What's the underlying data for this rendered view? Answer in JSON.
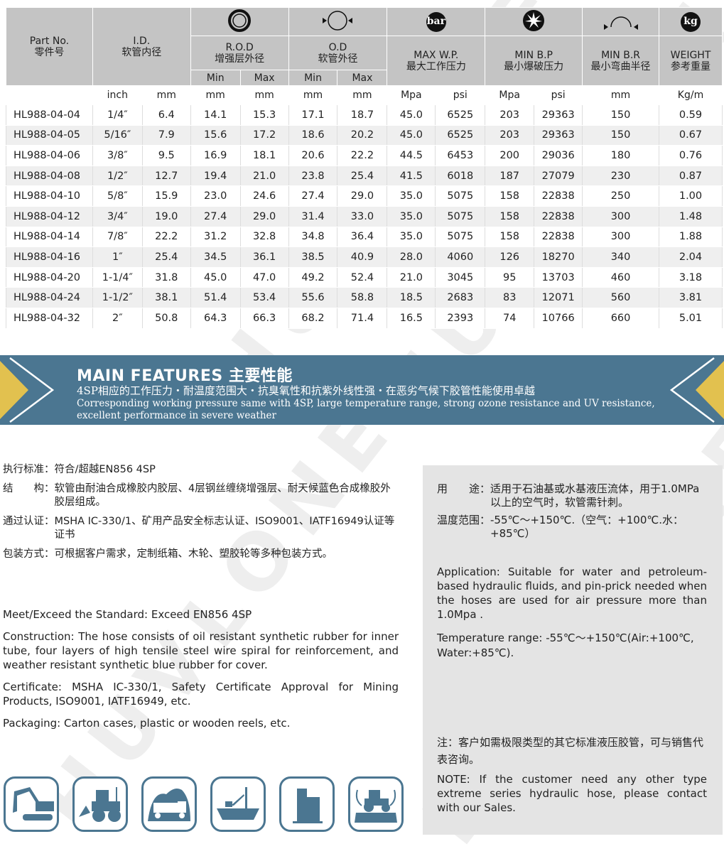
{
  "watermark": "HUVLONE",
  "table": {
    "headers": {
      "part_no": "Part No.",
      "part_no_cn": "零件号",
      "id": "I.D.",
      "id_cn": "软管内径",
      "rod": "R.O.D",
      "rod_cn": "增强层外径",
      "od": "O.D",
      "od_cn": "软管外径",
      "wp": "MAX W.P.",
      "wp_cn": "最大工作压力",
      "bp": "MIN B.P",
      "bp_cn": "最小爆破压力",
      "br": "MIN B.R",
      "br_cn": "最小弯曲半径",
      "weight": "WEIGHT",
      "weight_cn": "参考重量",
      "min": "Min",
      "max": "Max",
      "bar_icon": "bar",
      "kg_icon": "kg"
    },
    "units": [
      "",
      "inch",
      "mm",
      "mm",
      "mm",
      "mm",
      "mm",
      "Mpa",
      "psi",
      "Mpa",
      "psi",
      "mm",
      "Kg/m"
    ],
    "rows": [
      [
        "HL988-04-04",
        "1/4″",
        "6.4",
        "14.1",
        "15.3",
        "17.1",
        "18.7",
        "45.0",
        "6525",
        "203",
        "29363",
        "150",
        "0.59"
      ],
      [
        "HL988-04-05",
        "5/16″",
        "7.9",
        "15.6",
        "17.2",
        "18.6",
        "20.2",
        "45.0",
        "6525",
        "203",
        "29363",
        "150",
        "0.67"
      ],
      [
        "HL988-04-06",
        "3/8″",
        "9.5",
        "16.9",
        "18.1",
        "20.6",
        "22.2",
        "44.5",
        "6453",
        "200",
        "29036",
        "180",
        "0.76"
      ],
      [
        "HL988-04-08",
        "1/2″",
        "12.7",
        "19.4",
        "21.0",
        "23.8",
        "25.4",
        "41.5",
        "6018",
        "187",
        "27079",
        "230",
        "0.87"
      ],
      [
        "HL988-04-10",
        "5/8″",
        "15.9",
        "23.0",
        "24.6",
        "27.4",
        "29.0",
        "35.0",
        "5075",
        "158",
        "22838",
        "250",
        "1.00"
      ],
      [
        "HL988-04-12",
        "3/4″",
        "19.0",
        "27.4",
        "29.0",
        "31.4",
        "33.0",
        "35.0",
        "5075",
        "158",
        "22838",
        "300",
        "1.48"
      ],
      [
        "HL988-04-14",
        "7/8″",
        "22.2",
        "31.2",
        "32.8",
        "34.8",
        "36.4",
        "35.0",
        "5075",
        "158",
        "22838",
        "300",
        "1.88"
      ],
      [
        "HL988-04-16",
        "1″",
        "25.4",
        "34.5",
        "36.1",
        "38.5",
        "40.9",
        "28.0",
        "4060",
        "126",
        "18270",
        "340",
        "2.04"
      ],
      [
        "HL988-04-20",
        "1-1/4″",
        "31.8",
        "45.0",
        "47.0",
        "49.2",
        "52.4",
        "21.0",
        "3045",
        "95",
        "13703",
        "460",
        "3.18"
      ],
      [
        "HL988-04-24",
        "1-1/2″",
        "38.1",
        "51.4",
        "53.4",
        "55.6",
        "58.8",
        "18.5",
        "2683",
        "83",
        "12071",
        "560",
        "3.81"
      ],
      [
        "HL988-04-32",
        "2″",
        "50.8",
        "64.3",
        "66.3",
        "68.2",
        "71.4",
        "16.5",
        "2393",
        "74",
        "10766",
        "660",
        "5.01"
      ]
    ]
  },
  "banner": {
    "title": "MAIN FEATURES 主要性能",
    "cn": "4SP相应的工作压力・耐温度范围大・抗臭氧性和抗紫外线性强・在恶劣气候下胶管性能使用卓越",
    "en": "Corresponding working pressure same with 4SP, large temperature range, strong ozone resistance and UV resistance, excellent performance in severe weather",
    "bg_color": "#4b7691",
    "accent_color": "#e2c14f"
  },
  "cn_specs": [
    {
      "k": "执行标准：",
      "v": "符合/超越EN856 4SP"
    },
    {
      "k": "结　　构：",
      "v": "软管由耐油合成橡胶内胶层、4层钢丝缠绕增强层、耐天候蓝色合成橡胶外胶层组成。"
    },
    {
      "k": "通过认证：",
      "v": "MSHA IC-330/1、矿用产品安全标志认证、ISO9001、IATF16949认证等证书"
    },
    {
      "k": "包装方式：",
      "v": "可根据客户需求，定制纸箱、木轮、塑胶轮等多种包装方式。"
    }
  ],
  "en_specs": [
    "Meet/Exceed the Standard: Exceed EN856 4SP",
    "Construction: The hose consists of oil resistant synthetic rubber for inner tube, four layers of high tensile steel wire spiral for reinforcement, and weather resistant synthetic blue rubber for cover.",
    "Certificate: MSHA IC-330/1, Safety Certificate Approval for Mining Products, ISO9001, IATF16949, etc.",
    "Packaging: Carton cases, plastic or wooden reels, etc."
  ],
  "panel": {
    "use_k": "用　　途：",
    "use_v": "适用于石油基或水基液压流体，用于1.0MPa以上的空气时，软管需针刺。",
    "temp_k": "温度范围：",
    "temp_v": "-55℃～+150℃.（空气：+100℃.水：+85℃）",
    "application": "Application: Suitable for water and petroleum-based hydraulic fluids, and pin-prick needed when the hoses are used for air pressure more than 1.0Mpa .",
    "temperature": "Temperature range: -55℃～+150℃(Air:+100℃, Water:+85℃).",
    "note_cn": "注：客户如需极限类型的其它标准液压胶管，可与销售代表咨询。",
    "note_en": "NOTE: If the customer need any other type extreme series hydraulic hose, please contact with our Sales."
  },
  "application_icons": [
    "excavator-icon",
    "wheel-loader-icon",
    "mining-truck-icon",
    "ship-icon",
    "building-icon",
    "tractor-icon"
  ]
}
